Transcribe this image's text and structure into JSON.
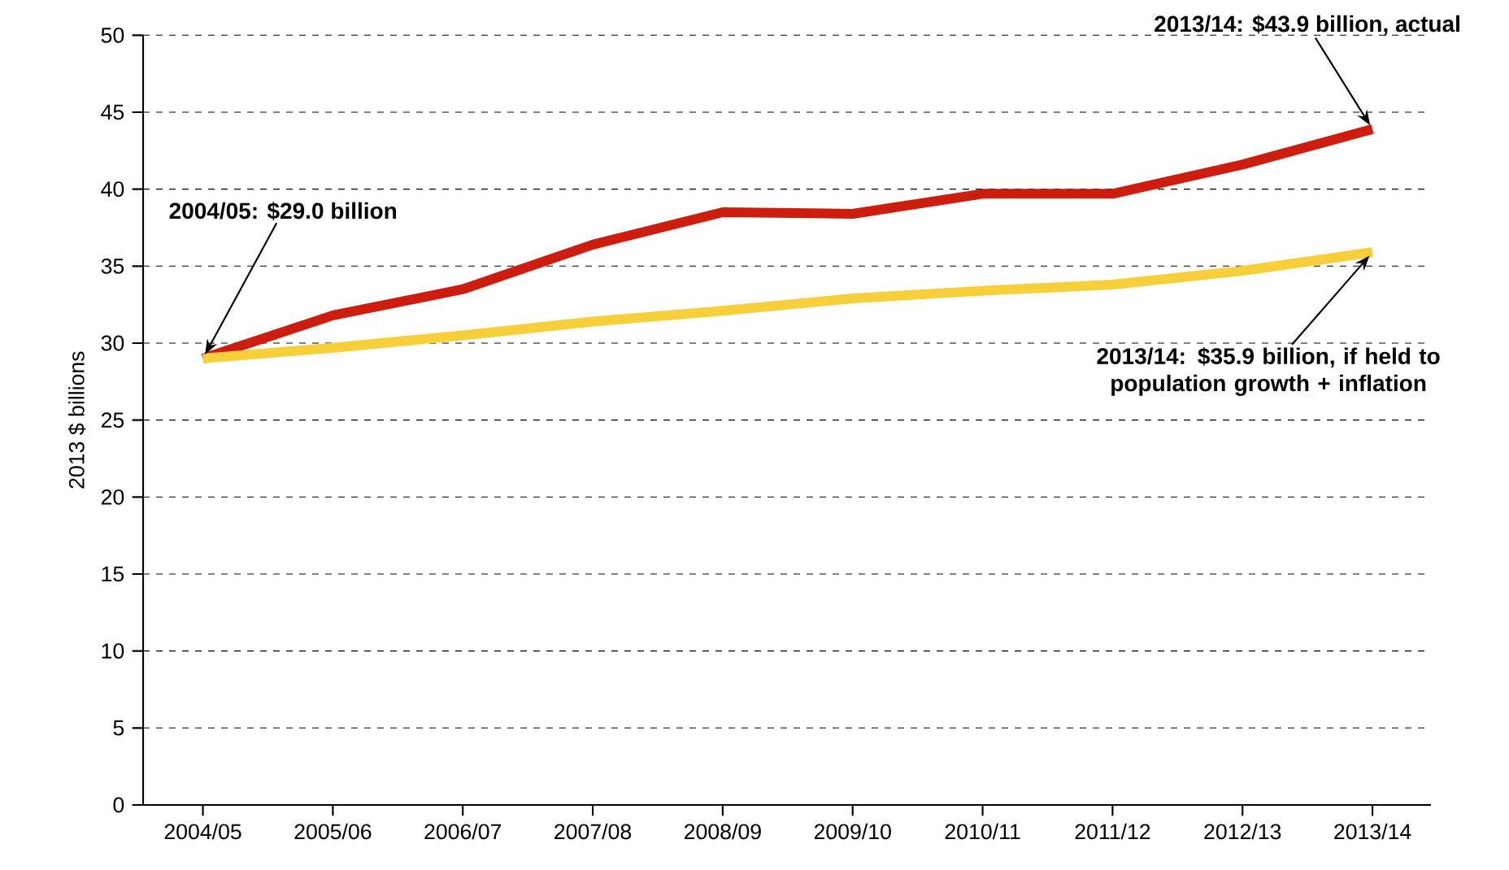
{
  "chart_data": {
    "type": "line",
    "ylabel": "2013 $ billions",
    "categories": [
      "2004/05",
      "2005/06",
      "2006/07",
      "2007/08",
      "2008/09",
      "2009/10",
      "2010/11",
      "2011/12",
      "2012/13",
      "2013/14"
    ],
    "series": [
      {
        "color": "#cc1d0f",
        "values": [
          29.0,
          31.8,
          33.5,
          36.4,
          38.5,
          38.4,
          39.7,
          39.7,
          41.6,
          43.9
        ]
      },
      {
        "color": "#f6cf3a",
        "values": [
          29.0,
          29.7,
          30.5,
          31.4,
          32.1,
          32.9,
          33.4,
          33.8,
          34.7,
          35.9
        ]
      }
    ],
    "ylim": [
      0,
      50
    ],
    "yticks": [
      0,
      5,
      10,
      15,
      20,
      25,
      30,
      35,
      40,
      45,
      50
    ],
    "grid": "y",
    "line_style": "solid",
    "marker": "none",
    "annotations": [
      {
        "text": "2004/05: $29.0 billion",
        "x": "2004/05",
        "y": 29.0
      },
      {
        "text": "2013/14: $43.9 billion, actual",
        "x": "2013/14",
        "y": 43.9
      },
      {
        "text": "2013/14: $35.9 billion, if held to population growth + inflation",
        "x": "2013/14",
        "y": 35.9
      }
    ]
  }
}
